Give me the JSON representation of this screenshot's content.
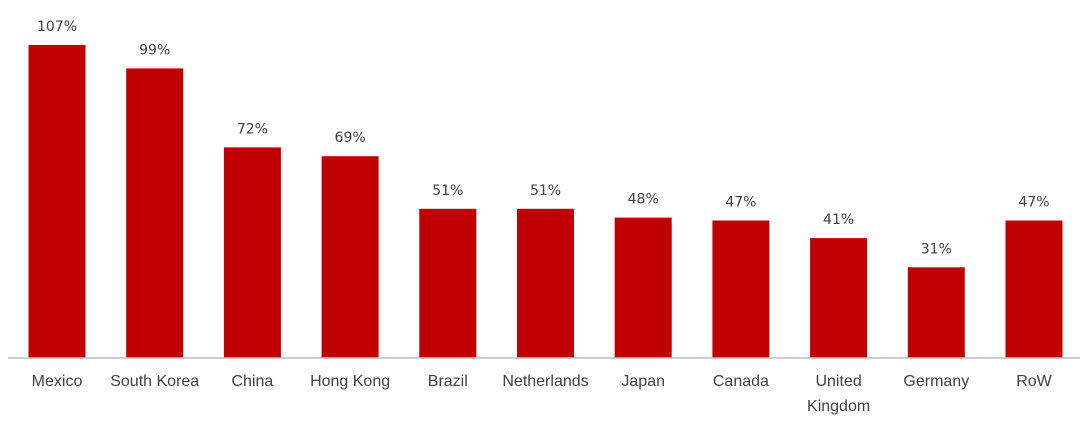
{
  "chart_data": {
    "type": "bar",
    "title": "",
    "xlabel": "",
    "ylabel": "",
    "categories": [
      "Mexico",
      "South Korea",
      "China",
      "Hong Kong",
      "Brazil",
      "Netherlands",
      "Japan",
      "Canada",
      "United Kingdom",
      "Germany",
      "RoW"
    ],
    "category_lines": [
      [
        "Mexico"
      ],
      [
        "South Korea"
      ],
      [
        "China"
      ],
      [
        "Hong Kong"
      ],
      [
        "Brazil"
      ],
      [
        "Netherlands"
      ],
      [
        "Japan"
      ],
      [
        "Canada"
      ],
      [
        "United",
        "Kingdom"
      ],
      [
        "Germany"
      ],
      [
        "RoW"
      ]
    ],
    "values": [
      107,
      99,
      72,
      69,
      51,
      51,
      48,
      47,
      41,
      31,
      47
    ],
    "value_labels": [
      "107%",
      "99%",
      "72%",
      "69%",
      "51%",
      "51%",
      "48%",
      "47%",
      "41%",
      "31%",
      "47%"
    ],
    "ylim": [
      0,
      107
    ],
    "grid": false,
    "legend": "none",
    "bar_color": "#C00000"
  }
}
